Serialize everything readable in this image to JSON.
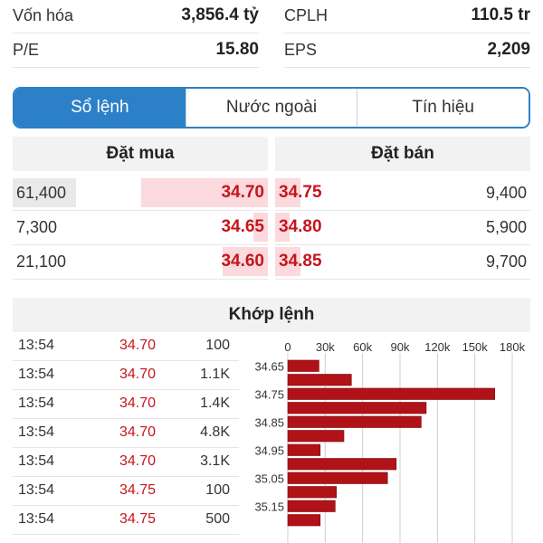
{
  "stats": [
    {
      "label": "Vốn hóa",
      "value": "3,856.4 tỷ"
    },
    {
      "label": "CPLH",
      "value": "110.5 tr"
    },
    {
      "label": "P/E",
      "value": "15.80"
    },
    {
      "label": "EPS",
      "value": "2,209"
    }
  ],
  "tabs": [
    "Sổ lệnh",
    "Nước ngoài",
    "Tín hiệu"
  ],
  "active_tab": 0,
  "orderbook": {
    "buy_header": "Đặt mua",
    "sell_header": "Đặt bán",
    "rows": [
      {
        "buy_vol": "61,400",
        "buy_price": "34.70",
        "sell_price": "34.75",
        "sell_vol": "9,400"
      },
      {
        "buy_vol": "7,300",
        "buy_price": "34.65",
        "sell_price": "34.80",
        "sell_vol": "5,900"
      },
      {
        "buy_vol": "21,100",
        "buy_price": "34.60",
        "sell_price": "34.85",
        "sell_vol": "9,700"
      }
    ]
  },
  "match": {
    "title": "Khớp lệnh",
    "rows": [
      {
        "time": "13:54",
        "price": "34.70",
        "vol": "100"
      },
      {
        "time": "13:54",
        "price": "34.70",
        "vol": "1.1K"
      },
      {
        "time": "13:54",
        "price": "34.70",
        "vol": "1.4K"
      },
      {
        "time": "13:54",
        "price": "34.70",
        "vol": "4.8K"
      },
      {
        "time": "13:54",
        "price": "34.70",
        "vol": "3.1K"
      },
      {
        "time": "13:54",
        "price": "34.75",
        "vol": "100"
      },
      {
        "time": "13:54",
        "price": "34.75",
        "vol": "500"
      }
    ]
  },
  "colors": {
    "accent": "#2c80c7",
    "price_red": "#c4161c",
    "bar_red": "#b01217",
    "bar_pink": "#fbd9dd"
  },
  "chart_data": {
    "type": "bar",
    "orientation": "horizontal",
    "x_ticks": [
      "0",
      "30k",
      "60k",
      "90k",
      "120k",
      "150k",
      "180k"
    ],
    "xlim": [
      0,
      180000
    ],
    "y_tick_labels": [
      "34.65",
      "34.75",
      "34.85",
      "34.95",
      "35.05",
      "35.15"
    ],
    "categories": [
      "34.65",
      "34.70",
      "34.75",
      "34.80",
      "34.85",
      "34.90",
      "34.95",
      "35.00",
      "35.05",
      "35.10",
      "35.15",
      "35.20"
    ],
    "values": [
      25000,
      51000,
      166000,
      111000,
      107000,
      45000,
      26000,
      87000,
      80000,
      39000,
      38000,
      26000
    ]
  }
}
